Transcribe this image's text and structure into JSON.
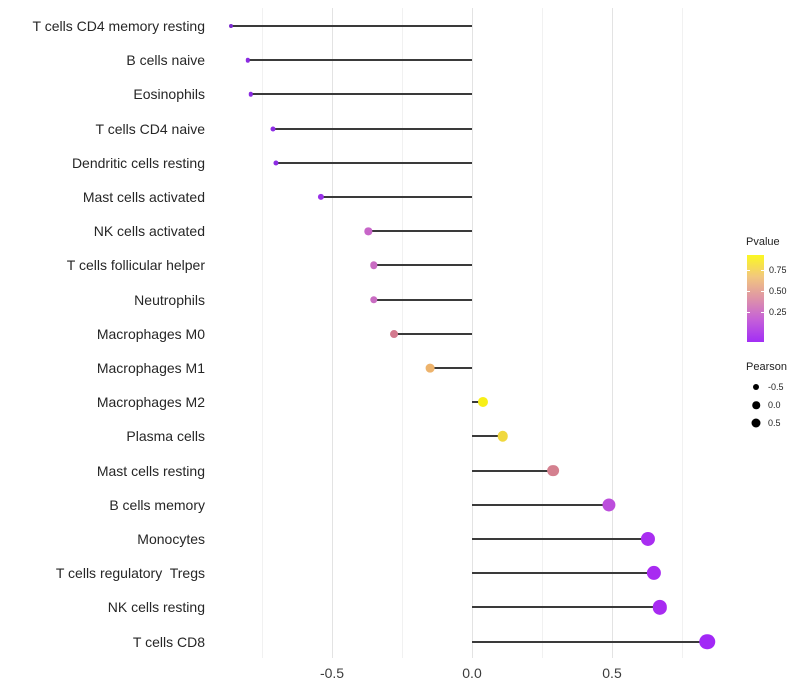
{
  "chart_data": {
    "type": "scatter",
    "subtype": "horizontal-lollipop",
    "title": "",
    "xlabel": "",
    "ylabel": "",
    "xlim": [
      -0.95,
      0.93
    ],
    "x_ticks": [
      -0.5,
      0.0,
      0.5
    ],
    "x_tick_labels": [
      "-0.5",
      "0.0",
      "0.5"
    ],
    "x_minor_gridlines": [
      -0.75,
      -0.25,
      0.25,
      0.75
    ],
    "grid": "vertical-only",
    "categories": [
      "T cells CD4 memory resting",
      "B cells naive",
      "Eosinophils",
      "T cells CD4 naive",
      "Dendritic cells resting",
      "Mast cells activated",
      "NK cells activated",
      "T cells follicular helper",
      "Neutrophils",
      "Macrophages M0",
      "Macrophages M1",
      "Macrophages M2",
      "Plasma cells",
      "Mast cells resting",
      "B cells memory",
      "Monocytes",
      "T cells regulatory  Tregs",
      "NK cells resting",
      "T cells CD8"
    ],
    "series": [
      {
        "name": "Pearson",
        "values": [
          -0.86,
          -0.8,
          -0.79,
          -0.71,
          -0.7,
          -0.54,
          -0.37,
          -0.35,
          -0.35,
          -0.28,
          -0.15,
          0.04,
          0.11,
          0.29,
          0.49,
          0.63,
          0.65,
          0.67,
          0.84
        ]
      }
    ],
    "point_colors": [
      "#7B2BCD",
      "#8B2BE2",
      "#8B2BE2",
      "#8D2CE4",
      "#8D2CE4",
      "#9931E8",
      "#C765C8",
      "#C96CC2",
      "#C96CC2",
      "#D3798E",
      "#EDB36C",
      "#F7EF17",
      "#F0D83E",
      "#D4808F",
      "#BC4EDC",
      "#A92EF1",
      "#A82BF1",
      "#A82BF1",
      "#A228F6"
    ],
    "stem_color": "#3a3a3a",
    "legend_position": "right"
  },
  "legends": {
    "pvalue": {
      "title": "Pvalue",
      "tick_labels": [
        "0.75",
        "0.50",
        "0.25"
      ],
      "gradient_top_to_bottom": [
        "#FBF821",
        "#F2C77E",
        "#DE93A8",
        "#C45FD9",
        "#A22EF5"
      ]
    },
    "pearson": {
      "title": "Pearson",
      "items": [
        {
          "label": "-0.5",
          "diameter": 6
        },
        {
          "label": "0.0",
          "diameter": 7.5
        },
        {
          "label": "0.5",
          "diameter": 9
        }
      ]
    }
  }
}
